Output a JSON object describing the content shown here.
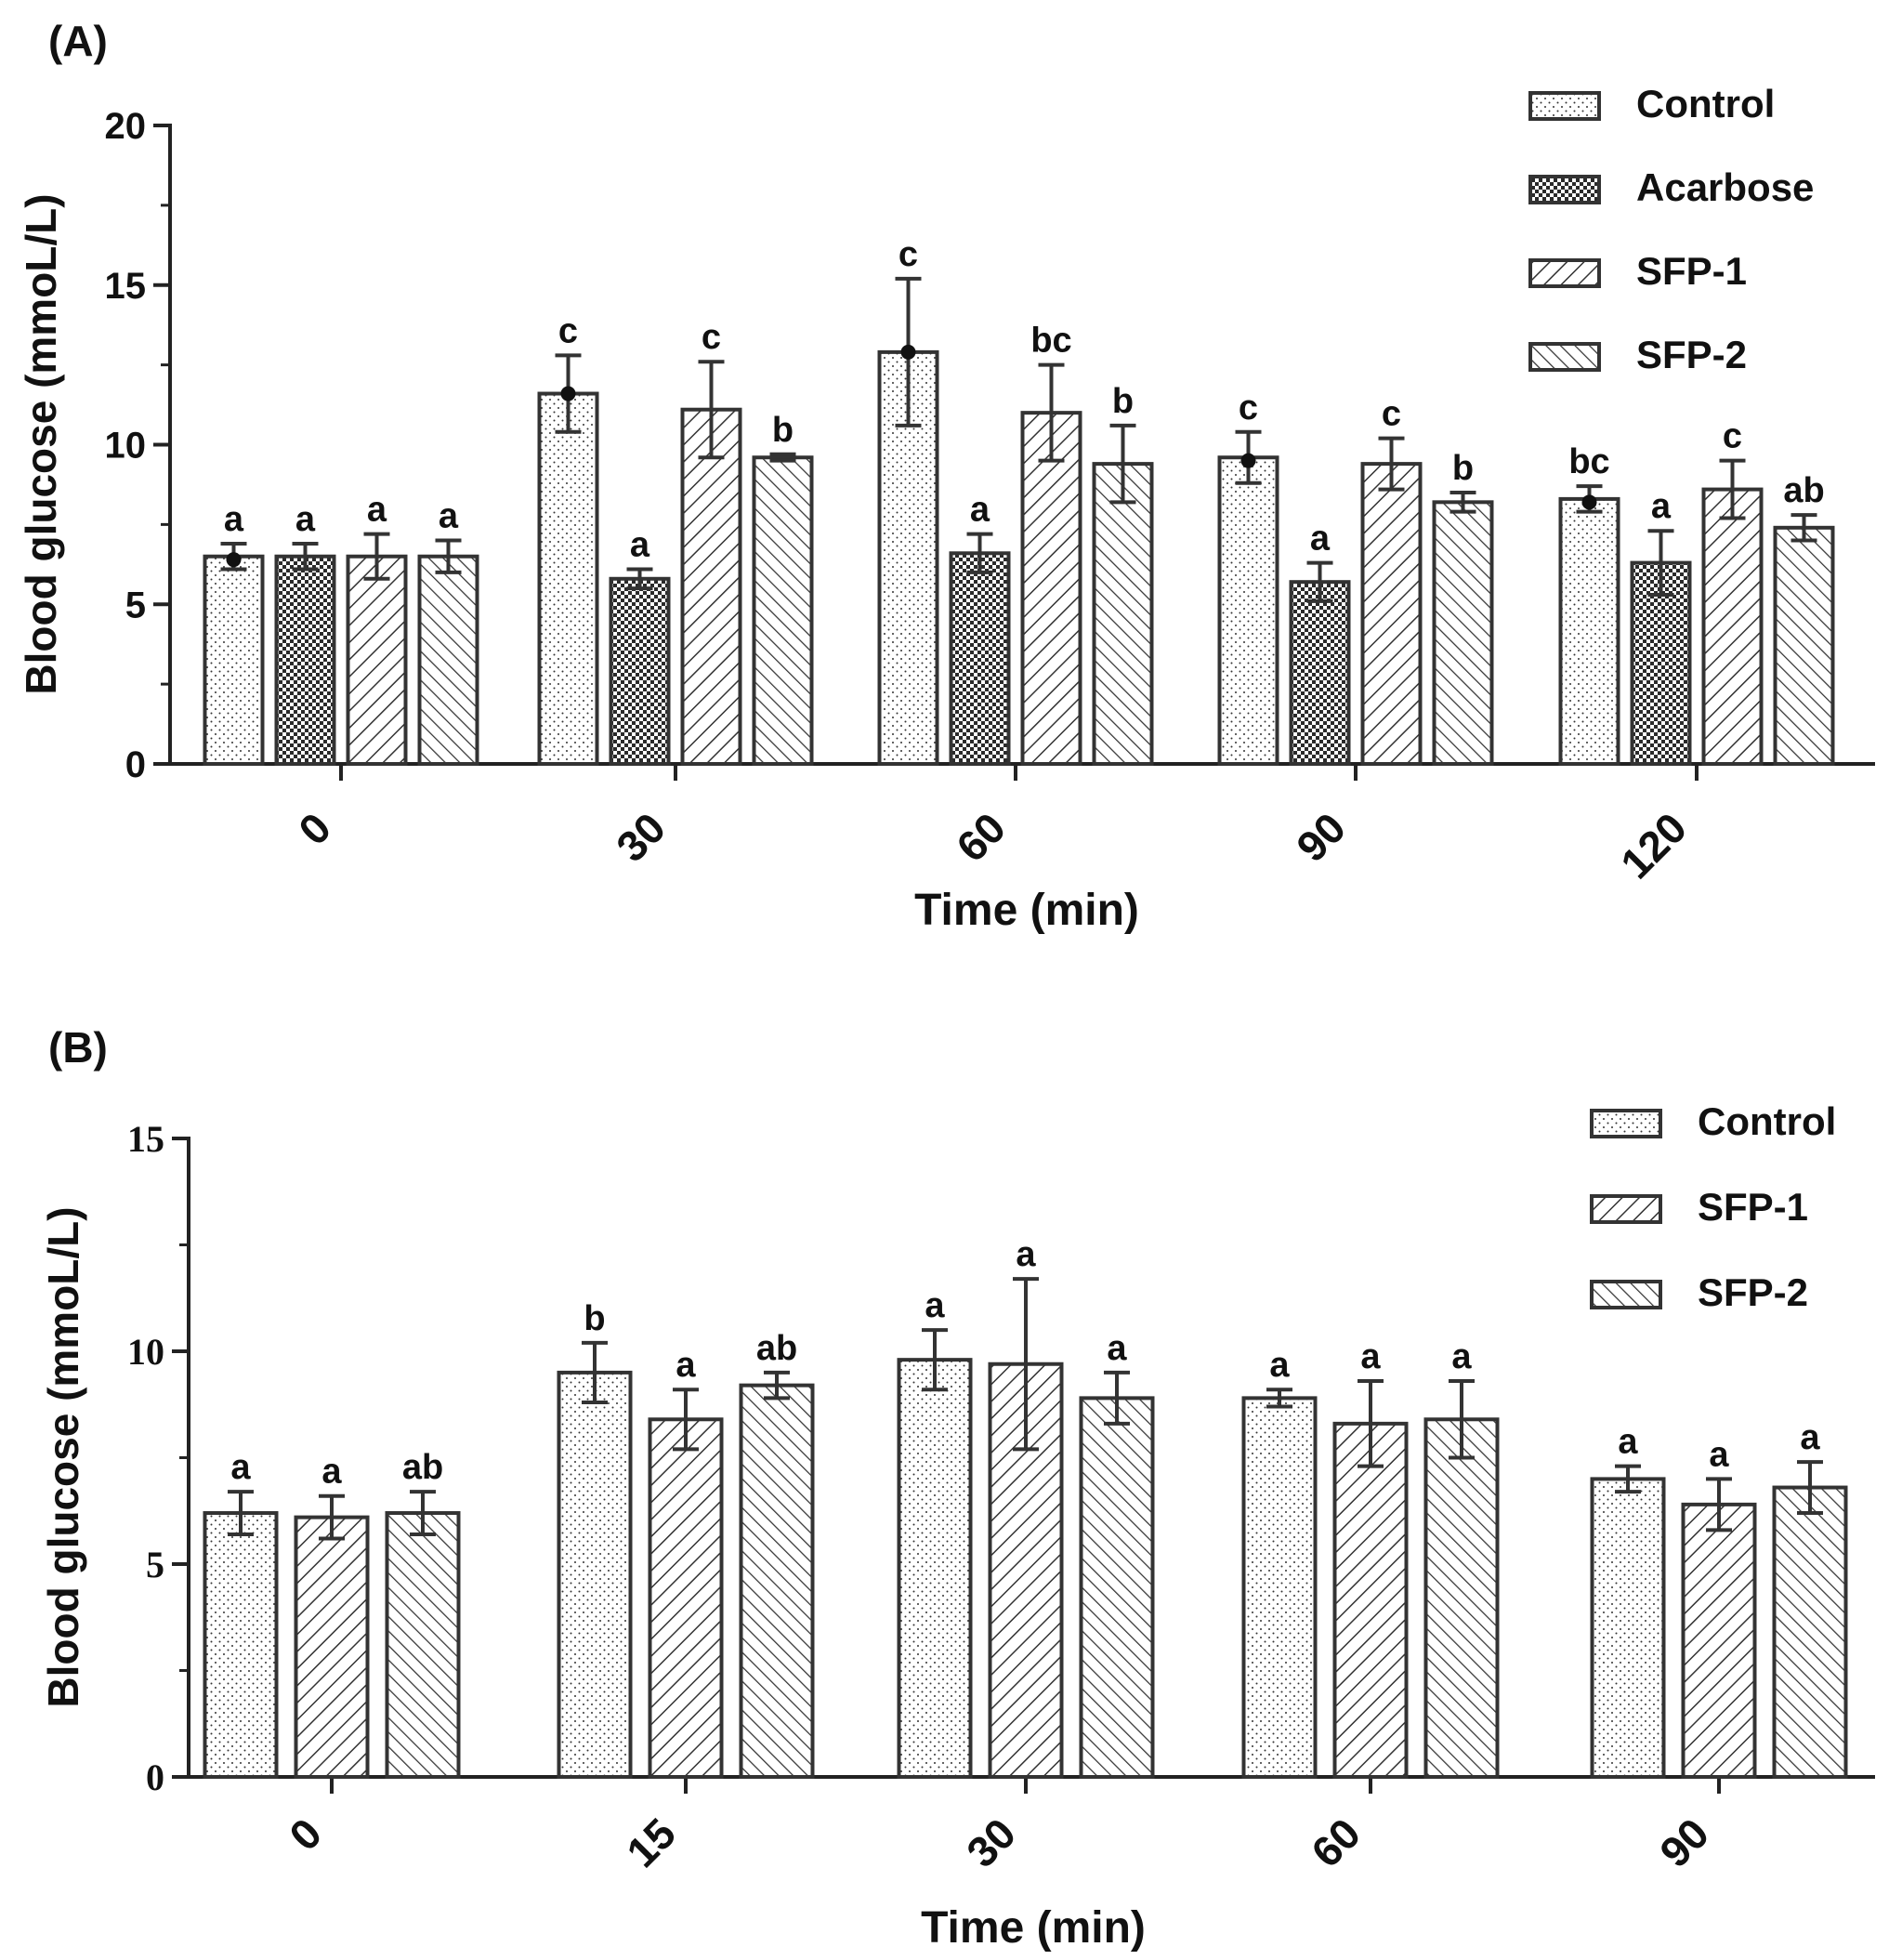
{
  "chart_data": [
    {
      "panel_label": "(A)",
      "type": "bar",
      "categories": [
        "0",
        "30",
        "60",
        "90",
        "120"
      ],
      "xlabel": "Time (min)",
      "ylabel": "Blood glucose (mmoL/L)",
      "ylim": [
        0,
        20
      ],
      "yticks": [
        "0",
        "5",
        "10",
        "15",
        "20"
      ],
      "legend_position": "top-right",
      "series": [
        {
          "name": "Control",
          "pattern": "dots",
          "values": [
            6.5,
            11.6,
            12.9,
            9.6,
            8.3
          ],
          "errors": [
            0.4,
            1.2,
            2.3,
            0.8,
            0.4
          ],
          "letters": [
            "a",
            "c",
            "c",
            "c",
            "bc"
          ],
          "point_markers": [
            6.4,
            11.6,
            12.9,
            9.5,
            8.2
          ]
        },
        {
          "name": "Acarbose",
          "pattern": "checker",
          "values": [
            6.5,
            5.8,
            6.6,
            5.7,
            6.3
          ],
          "errors": [
            0.4,
            0.3,
            0.6,
            0.6,
            1.0
          ],
          "letters": [
            "a",
            "a",
            "a",
            "a",
            "a"
          ]
        },
        {
          "name": "SFP-1",
          "pattern": "forward-hatch",
          "values": [
            6.5,
            11.1,
            11.0,
            9.4,
            8.6
          ],
          "errors": [
            0.7,
            1.5,
            1.5,
            0.8,
            0.9
          ],
          "letters": [
            "a",
            "c",
            "bc",
            "c",
            "c"
          ]
        },
        {
          "name": "SFP-2",
          "pattern": "back-hatch",
          "values": [
            6.5,
            9.6,
            9.4,
            8.2,
            7.4
          ],
          "errors": [
            0.5,
            0.1,
            1.2,
            0.3,
            0.4
          ],
          "letters": [
            "a",
            "b",
            "b",
            "b",
            "ab"
          ]
        }
      ]
    },
    {
      "panel_label": "(B)",
      "type": "bar",
      "categories": [
        "0",
        "15",
        "30",
        "60",
        "90"
      ],
      "xlabel": "Time (min)",
      "ylabel": "Blood glucose (mmoL/L)",
      "ylim": [
        0,
        15
      ],
      "yticks": [
        "0",
        "5",
        "10",
        "15"
      ],
      "legend_position": "top-right",
      "series": [
        {
          "name": "Control",
          "pattern": "dots",
          "values": [
            6.2,
            9.5,
            9.8,
            8.9,
            7.0
          ],
          "errors": [
            0.5,
            0.7,
            0.7,
            0.2,
            0.3
          ],
          "letters": [
            "a",
            "b",
            "a",
            "a",
            "a"
          ]
        },
        {
          "name": "SFP-1",
          "pattern": "forward-hatch",
          "values": [
            6.1,
            8.4,
            9.7,
            8.3,
            6.4
          ],
          "errors": [
            0.5,
            0.7,
            2.0,
            1.0,
            0.6
          ],
          "letters": [
            "a",
            "a",
            "a",
            "a",
            "a"
          ]
        },
        {
          "name": "SFP-2",
          "pattern": "back-hatch",
          "values": [
            6.2,
            9.2,
            8.9,
            8.4,
            6.8
          ],
          "errors": [
            0.5,
            0.3,
            0.6,
            0.9,
            0.6
          ],
          "letters": [
            "ab",
            "ab",
            "a",
            "a",
            "a"
          ]
        }
      ]
    }
  ]
}
